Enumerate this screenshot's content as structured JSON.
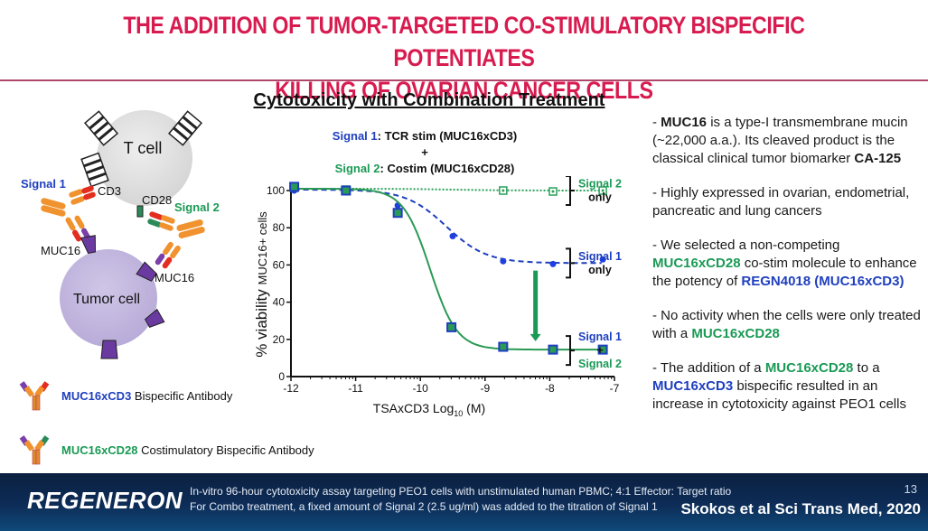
{
  "slide": {
    "title_line1": "THE ADDITION OF TUMOR-TARGETED CO-STIMULATORY BISPECIFIC POTENTIATES",
    "title_line2": "KILLING OF OVARIAN CANCER CELLS",
    "accent_color": "#d81b4f",
    "page_number": "13"
  },
  "diagram": {
    "t_cell_label": "T cell",
    "tumor_cell_label": "Tumor cell",
    "signal1_label": "Signal 1",
    "signal2_label": "Signal 2",
    "cd3_label": "CD3",
    "cd28_label": "CD28",
    "muc16_label_left": "MUC16",
    "muc16_label_right": "MUC16",
    "legend": [
      {
        "colored": "MUC16xCD3",
        "rest": " Bispecific Antibody",
        "color": "blue",
        "icon": "bispecific-antibody-cd3-icon"
      },
      {
        "colored": "MUC16xCD28",
        "rest": " Costimulatory Bispecific Antibody",
        "color": "green",
        "icon": "bispecific-antibody-cd28-icon"
      }
    ]
  },
  "chart_header": {
    "title": "Cytotoxicity with Combination Treatment",
    "signal1_name": "Signal 1",
    "signal1_desc": ": TCR stim (MUC16xCD3)",
    "plus": "+",
    "signal2_name": "Signal 2",
    "signal2_desc": ": Costim (MUC16xCD28)"
  },
  "chart_data": {
    "type": "line",
    "title": "Cytotoxicity with Combination Treatment",
    "xlabel": "TSAxCD3 Log10 (M)",
    "xlabel_main": "TSAxCD3 Log",
    "xlabel_sub": "10",
    "xlabel_tail": " (M)",
    "ylabel": "% viability MUC16+ cells",
    "ylabel_pre": "% viability ",
    "ylabel_small": "MUC16+ cells",
    "xlim": [
      -12,
      -7
    ],
    "ylim": [
      0,
      100
    ],
    "xticks": [
      -12,
      -11,
      -10,
      -9,
      -8,
      -7
    ],
    "yticks": [
      0,
      20,
      40,
      60,
      80,
      100
    ],
    "grid": false,
    "series": [
      {
        "name": "Signal 2 only",
        "label_lines": [
          "Signal 2",
          "only"
        ],
        "label_colors": [
          "green",
          "black"
        ],
        "color": "#2aa05a",
        "style": "dotted",
        "marker": "open-circle-square",
        "x": [
          -11.95,
          -11.15,
          -8.72,
          -7.95,
          -7.18
        ],
        "y": [
          101.5,
          100.5,
          100,
          99.5,
          100
        ]
      },
      {
        "name": "Signal 1 only",
        "label_lines": [
          "Signal 1",
          "only"
        ],
        "label_colors": [
          "blue",
          "black"
        ],
        "color": "#1f3fbf",
        "style": "dashed",
        "marker": "circle",
        "x": [
          -11.95,
          -11.15,
          -10.35,
          -9.5,
          -8.72,
          -7.95,
          -7.18
        ],
        "y": [
          100,
          100,
          92,
          75.5,
          62,
          60.5,
          63
        ]
      },
      {
        "name": "Signal 1 + Signal 2",
        "label_lines": [
          "Signal 1",
          "+",
          "Signal 2"
        ],
        "label_colors": [
          "blue",
          "black",
          "green"
        ],
        "color": "#2a9a55",
        "style": "solid",
        "marker": "square",
        "x": [
          -11.95,
          -11.15,
          -10.35,
          -9.52,
          -8.72,
          -7.95,
          -7.18
        ],
        "y": [
          102,
          100,
          88,
          26.5,
          16,
          14.5,
          14.5
        ]
      }
    ],
    "annotations": [
      {
        "type": "arrow",
        "from": [
          -8.22,
          57
        ],
        "to": [
          -8.22,
          19
        ],
        "color": "#1a9a55"
      }
    ]
  },
  "bullets": [
    [
      {
        "t": "- "
      },
      {
        "t": "MUC16",
        "s": "b"
      },
      {
        "t": " is a type-I transmembrane mucin (~22,000 a.a.).  Its cleaved product is the classical clinical tumor biomarker "
      },
      {
        "t": "CA-125",
        "s": "b"
      }
    ],
    [
      {
        "t": "- Highly expressed in ovarian, endometrial, pancreatic and lung cancers"
      }
    ],
    [
      {
        "t": "- We selected a non-competing "
      },
      {
        "t": "MUC16xCD28",
        "s": "g"
      },
      {
        "t": " co-stim molecule to enhance the potency of "
      },
      {
        "t": "REGN4018 (MUC16xCD3)",
        "s": "bl"
      }
    ],
    [
      {
        "t": "- No activity when the cells were only treated with a "
      },
      {
        "t": "MUC16xCD28",
        "s": "g"
      }
    ],
    [
      {
        "t": "- The addition of a "
      },
      {
        "t": "MUC16xCD28",
        "s": "g"
      },
      {
        "t": " to a "
      },
      {
        "t": "MUC16xCD3",
        "s": "bl"
      },
      {
        "t": " bispecific resulted in an increase in cytotoxicity against PEO1 cells"
      }
    ]
  ],
  "footer": {
    "logo": "REGENERON",
    "note1": "In-vitro 96-hour cytotoxicity assay targeting PEO1 cells with unstimulated human PBMC; 4:1 Effector: Target ratio",
    "note2": "For Combo treatment, a fixed amount of Signal 2 (2.5 ug/ml) was added to the titration of Signal 1",
    "citation": "Skokos et al Sci Trans Med, 2020"
  }
}
